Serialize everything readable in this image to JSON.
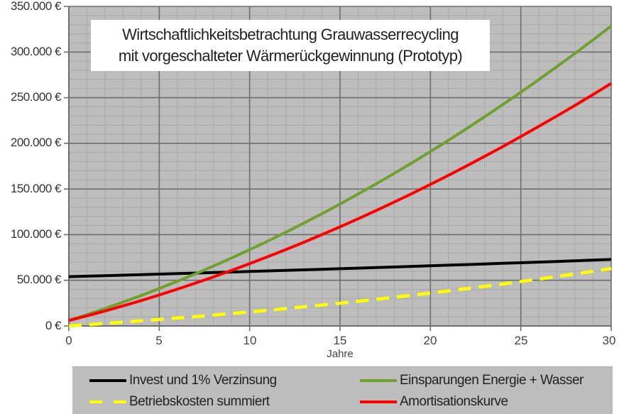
{
  "chart_data": {
    "type": "line",
    "title": "Wirtschaftlichkeitsbetrachtung Grauwasserrecycling mit vorgeschalteter Wärmerückgewinnung (Prototyp)",
    "title_lines": [
      "Wirtschaftlichkeitsbetrachtung Grauwasserrecycling",
      "mit vorgeschalteter Wärmerückgewinnung (Prototyp)"
    ],
    "xlabel": "Jahre",
    "ylabel": "",
    "xlim": [
      0,
      30
    ],
    "ylim": [
      0,
      350000
    ],
    "x_ticks": [
      "0",
      "5",
      "10",
      "15",
      "20",
      "25",
      "30"
    ],
    "y_ticks": [
      "0 €",
      "50.000 €",
      "100.000 €",
      "150.000 €",
      "200.000 €",
      "250.000 €",
      "300.000 €",
      "350.000 €"
    ],
    "grid": true,
    "legend_position": "bottom",
    "background": "#bdbdbd",
    "x": [
      0,
      1,
      2,
      3,
      4,
      5,
      6,
      7,
      8,
      9,
      10,
      11,
      12,
      13,
      14,
      15,
      16,
      17,
      18,
      19,
      20,
      21,
      22,
      23,
      24,
      25,
      26,
      27,
      28,
      29,
      30
    ],
    "series": [
      {
        "name": "Invest und 1% Verzinsung",
        "color": "#000000",
        "style": "solid",
        "values": [
          54000,
          54540,
          55085,
          55636,
          56193,
          56755,
          57322,
          57895,
          58474,
          59059,
          59650,
          60246,
          60849,
          61457,
          62072,
          62692,
          63319,
          63953,
          64592,
          65238,
          65890,
          66549,
          67215,
          67887,
          68566,
          69252,
          69944,
          70644,
          71350,
          72064,
          72784
        ]
      },
      {
        "name": "Einsparungen Energie + Wasser",
        "color": "#70a030",
        "style": "solid",
        "values": [
          6000,
          12400,
          19100,
          26100,
          33400,
          41000,
          48900,
          57100,
          65600,
          74400,
          83500,
          92900,
          102600,
          112600,
          122900,
          133500,
          144400,
          155600,
          167100,
          178900,
          191000,
          203400,
          216100,
          229100,
          242400,
          256000,
          269900,
          284100,
          298600,
          313400,
          328500
        ]
      },
      {
        "name": "Betriebskosten summiert",
        "color": "#ffff00",
        "style": "dashed",
        "values": [
          0,
          1300,
          2700,
          4100,
          5600,
          7100,
          8600,
          10200,
          11900,
          13600,
          15300,
          17100,
          19000,
          20900,
          22900,
          24900,
          27000,
          29200,
          31400,
          33700,
          36000,
          38400,
          40900,
          43400,
          46000,
          48600,
          51300,
          54100,
          57000,
          59900,
          62900
        ]
      },
      {
        "name": "Amortisationskurve",
        "color": "#ff0000",
        "style": "solid",
        "values": [
          6000,
          11100,
          16400,
          22000,
          27800,
          33900,
          40300,
          46900,
          53700,
          60800,
          68200,
          75800,
          83600,
          91700,
          100000,
          108600,
          117400,
          126400,
          135700,
          145200,
          155000,
          165000,
          175200,
          185700,
          196400,
          207400,
          218600,
          230000,
          241600,
          253500,
          265600
        ]
      }
    ]
  },
  "legend": {
    "items": [
      {
        "label": "Invest und 1% Verzinsung",
        "color": "#000000",
        "style": "solid"
      },
      {
        "label": "Einsparungen Energie + Wasser",
        "color": "#70a030",
        "style": "solid"
      },
      {
        "label": "Betriebskosten summiert",
        "color": "#ffff00",
        "style": "dashed"
      },
      {
        "label": "Amortisationskurve",
        "color": "#ff0000",
        "style": "solid"
      }
    ]
  }
}
